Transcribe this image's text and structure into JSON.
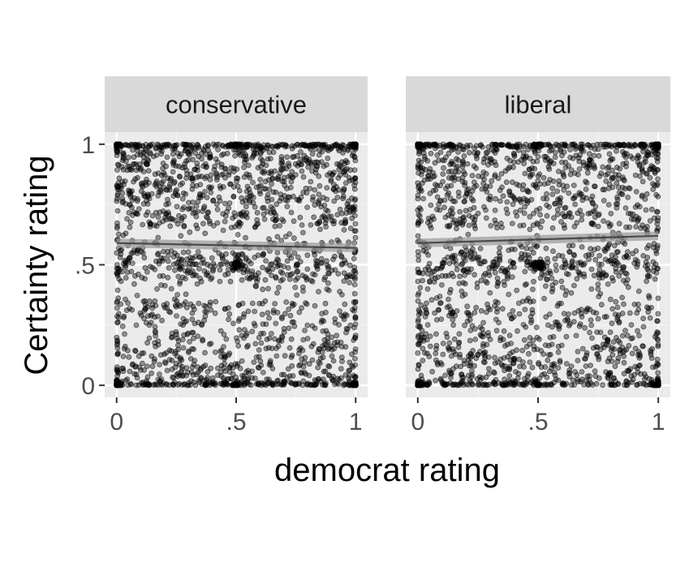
{
  "colors": {
    "panel_background": "#EBEBEB",
    "strip_background": "#D9D9D9",
    "grid_major": "#FFFFFF",
    "grid_minor": "#F5F5F5",
    "points": "#000000",
    "trend_band": "#999999",
    "trend_line": "#333333",
    "tick_text": "#4D4D4D",
    "title_text": "#000000"
  },
  "chart_data": {
    "type": "scatter",
    "xlabel": "democrat rating",
    "ylabel": "Certainty rating",
    "xlim": [
      -0.05,
      1.05
    ],
    "ylim": [
      -0.05,
      1.05
    ],
    "x_ticks": [
      {
        "value": 0,
        "label": "0"
      },
      {
        "value": 0.5,
        "label": ".5"
      },
      {
        "value": 1,
        "label": "1"
      }
    ],
    "y_ticks": [
      {
        "value": 0,
        "label": "0"
      },
      {
        "value": 0.5,
        "label": ".5"
      },
      {
        "value": 1,
        "label": "1"
      }
    ],
    "grid": true,
    "legend": "none",
    "point_alpha": 0.4,
    "facets": [
      {
        "label": "conservative",
        "trend": {
          "x": [
            0,
            1
          ],
          "y": [
            0.59,
            0.57
          ],
          "se": 0.018
        },
        "cluster_points": [
          {
            "x": 0,
            "y": 1,
            "n": 40
          },
          {
            "x": 1,
            "y": 1,
            "n": 40
          },
          {
            "x": 0,
            "y": 0,
            "n": 40
          },
          {
            "x": 1,
            "y": 0,
            "n": 40
          },
          {
            "x": 0.5,
            "y": 0.5,
            "n": 40
          },
          {
            "x": 0.5,
            "y": 1,
            "n": 20
          },
          {
            "x": 0.5,
            "y": 0,
            "n": 20
          }
        ],
        "random_points": 1700
      },
      {
        "label": "liberal",
        "trend": {
          "x": [
            0,
            1
          ],
          "y": [
            0.59,
            0.62
          ],
          "se": 0.018
        },
        "cluster_points": [
          {
            "x": 0,
            "y": 1,
            "n": 40
          },
          {
            "x": 1,
            "y": 1,
            "n": 40
          },
          {
            "x": 0,
            "y": 0,
            "n": 40
          },
          {
            "x": 1,
            "y": 0,
            "n": 40
          },
          {
            "x": 0.5,
            "y": 0.5,
            "n": 50
          },
          {
            "x": 0.5,
            "y": 1,
            "n": 20
          },
          {
            "x": 0.5,
            "y": 0,
            "n": 20
          }
        ],
        "random_points": 1600
      }
    ]
  }
}
